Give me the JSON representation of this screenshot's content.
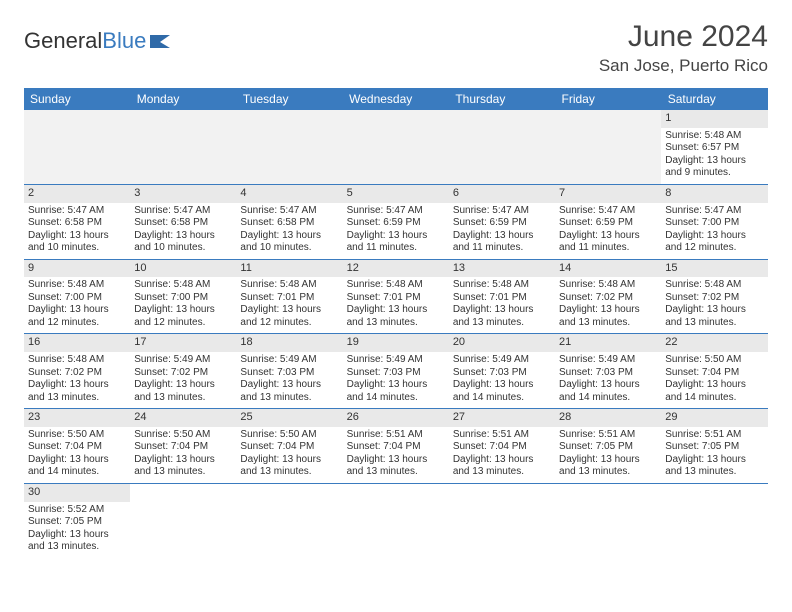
{
  "logo": {
    "text_general": "General",
    "text_blue": "Blue"
  },
  "title": "June 2024",
  "location": "San Jose, Puerto Rico",
  "colors": {
    "header_bg": "#3a7bbf",
    "header_text": "#ffffff",
    "daynum_bg": "#e9e9e9",
    "row_border": "#3a7bbf",
    "page_bg": "#ffffff",
    "text": "#333333"
  },
  "weekdays": [
    "Sunday",
    "Monday",
    "Tuesday",
    "Wednesday",
    "Thursday",
    "Friday",
    "Saturday"
  ],
  "weeks": [
    [
      null,
      null,
      null,
      null,
      null,
      null,
      {
        "d": "1",
        "sr": "Sunrise: 5:48 AM",
        "ss": "Sunset: 6:57 PM",
        "dl": "Daylight: 13 hours and 9 minutes."
      }
    ],
    [
      {
        "d": "2",
        "sr": "Sunrise: 5:47 AM",
        "ss": "Sunset: 6:58 PM",
        "dl": "Daylight: 13 hours and 10 minutes."
      },
      {
        "d": "3",
        "sr": "Sunrise: 5:47 AM",
        "ss": "Sunset: 6:58 PM",
        "dl": "Daylight: 13 hours and 10 minutes."
      },
      {
        "d": "4",
        "sr": "Sunrise: 5:47 AM",
        "ss": "Sunset: 6:58 PM",
        "dl": "Daylight: 13 hours and 10 minutes."
      },
      {
        "d": "5",
        "sr": "Sunrise: 5:47 AM",
        "ss": "Sunset: 6:59 PM",
        "dl": "Daylight: 13 hours and 11 minutes."
      },
      {
        "d": "6",
        "sr": "Sunrise: 5:47 AM",
        "ss": "Sunset: 6:59 PM",
        "dl": "Daylight: 13 hours and 11 minutes."
      },
      {
        "d": "7",
        "sr": "Sunrise: 5:47 AM",
        "ss": "Sunset: 6:59 PM",
        "dl": "Daylight: 13 hours and 11 minutes."
      },
      {
        "d": "8",
        "sr": "Sunrise: 5:47 AM",
        "ss": "Sunset: 7:00 PM",
        "dl": "Daylight: 13 hours and 12 minutes."
      }
    ],
    [
      {
        "d": "9",
        "sr": "Sunrise: 5:48 AM",
        "ss": "Sunset: 7:00 PM",
        "dl": "Daylight: 13 hours and 12 minutes."
      },
      {
        "d": "10",
        "sr": "Sunrise: 5:48 AM",
        "ss": "Sunset: 7:00 PM",
        "dl": "Daylight: 13 hours and 12 minutes."
      },
      {
        "d": "11",
        "sr": "Sunrise: 5:48 AM",
        "ss": "Sunset: 7:01 PM",
        "dl": "Daylight: 13 hours and 12 minutes."
      },
      {
        "d": "12",
        "sr": "Sunrise: 5:48 AM",
        "ss": "Sunset: 7:01 PM",
        "dl": "Daylight: 13 hours and 13 minutes."
      },
      {
        "d": "13",
        "sr": "Sunrise: 5:48 AM",
        "ss": "Sunset: 7:01 PM",
        "dl": "Daylight: 13 hours and 13 minutes."
      },
      {
        "d": "14",
        "sr": "Sunrise: 5:48 AM",
        "ss": "Sunset: 7:02 PM",
        "dl": "Daylight: 13 hours and 13 minutes."
      },
      {
        "d": "15",
        "sr": "Sunrise: 5:48 AM",
        "ss": "Sunset: 7:02 PM",
        "dl": "Daylight: 13 hours and 13 minutes."
      }
    ],
    [
      {
        "d": "16",
        "sr": "Sunrise: 5:48 AM",
        "ss": "Sunset: 7:02 PM",
        "dl": "Daylight: 13 hours and 13 minutes."
      },
      {
        "d": "17",
        "sr": "Sunrise: 5:49 AM",
        "ss": "Sunset: 7:02 PM",
        "dl": "Daylight: 13 hours and 13 minutes."
      },
      {
        "d": "18",
        "sr": "Sunrise: 5:49 AM",
        "ss": "Sunset: 7:03 PM",
        "dl": "Daylight: 13 hours and 13 minutes."
      },
      {
        "d": "19",
        "sr": "Sunrise: 5:49 AM",
        "ss": "Sunset: 7:03 PM",
        "dl": "Daylight: 13 hours and 14 minutes."
      },
      {
        "d": "20",
        "sr": "Sunrise: 5:49 AM",
        "ss": "Sunset: 7:03 PM",
        "dl": "Daylight: 13 hours and 14 minutes."
      },
      {
        "d": "21",
        "sr": "Sunrise: 5:49 AM",
        "ss": "Sunset: 7:03 PM",
        "dl": "Daylight: 13 hours and 14 minutes."
      },
      {
        "d": "22",
        "sr": "Sunrise: 5:50 AM",
        "ss": "Sunset: 7:04 PM",
        "dl": "Daylight: 13 hours and 14 minutes."
      }
    ],
    [
      {
        "d": "23",
        "sr": "Sunrise: 5:50 AM",
        "ss": "Sunset: 7:04 PM",
        "dl": "Daylight: 13 hours and 14 minutes."
      },
      {
        "d": "24",
        "sr": "Sunrise: 5:50 AM",
        "ss": "Sunset: 7:04 PM",
        "dl": "Daylight: 13 hours and 13 minutes."
      },
      {
        "d": "25",
        "sr": "Sunrise: 5:50 AM",
        "ss": "Sunset: 7:04 PM",
        "dl": "Daylight: 13 hours and 13 minutes."
      },
      {
        "d": "26",
        "sr": "Sunrise: 5:51 AM",
        "ss": "Sunset: 7:04 PM",
        "dl": "Daylight: 13 hours and 13 minutes."
      },
      {
        "d": "27",
        "sr": "Sunrise: 5:51 AM",
        "ss": "Sunset: 7:04 PM",
        "dl": "Daylight: 13 hours and 13 minutes."
      },
      {
        "d": "28",
        "sr": "Sunrise: 5:51 AM",
        "ss": "Sunset: 7:05 PM",
        "dl": "Daylight: 13 hours and 13 minutes."
      },
      {
        "d": "29",
        "sr": "Sunrise: 5:51 AM",
        "ss": "Sunset: 7:05 PM",
        "dl": "Daylight: 13 hours and 13 minutes."
      }
    ],
    [
      {
        "d": "30",
        "sr": "Sunrise: 5:52 AM",
        "ss": "Sunset: 7:05 PM",
        "dl": "Daylight: 13 hours and 13 minutes."
      },
      null,
      null,
      null,
      null,
      null,
      null
    ]
  ]
}
